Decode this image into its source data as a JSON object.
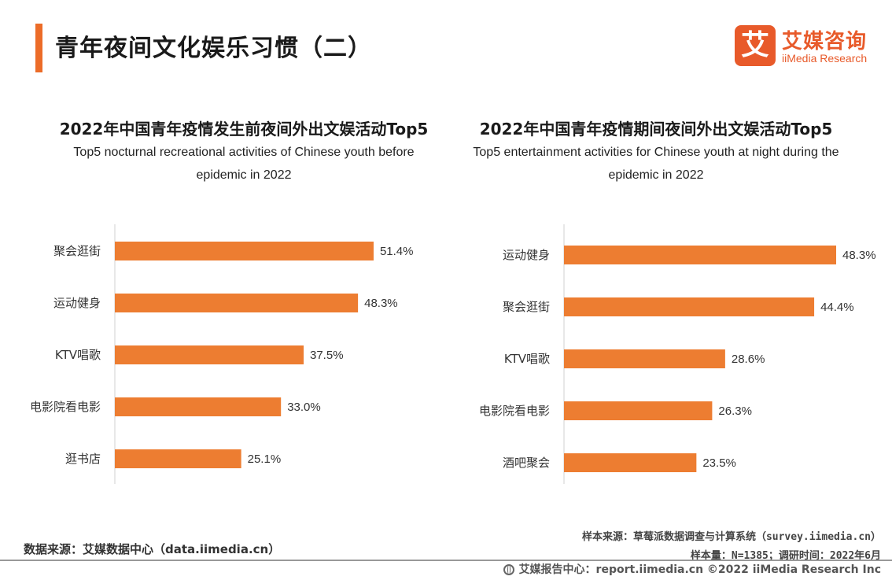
{
  "header": {
    "title": "青年夜间文化娱乐习惯（二）",
    "logo": {
      "mark": "艾",
      "cn": "艾媒咨询",
      "en": "iiMedia Research",
      "icon": "iimedia-logo-icon"
    }
  },
  "chart_data": [
    {
      "type": "bar",
      "orientation": "horizontal",
      "title": "2022年中国青年疫情发生前夜间外出文娱活动Top5",
      "subtitle_line1": "Top5 nocturnal recreational activities of Chinese youth before",
      "subtitle_line2": "epidemic in 2022",
      "categories": [
        "聚会逛街",
        "运动健身",
        "KTV唱歌",
        "电影院看电影",
        "逛书店"
      ],
      "values": [
        51.4,
        48.3,
        37.5,
        33.0,
        25.1
      ],
      "value_labels": [
        "51.4%",
        "48.3%",
        "37.5%",
        "33.0%",
        "25.1%"
      ],
      "unit": "%",
      "xlim": [
        0,
        60
      ],
      "grid": false,
      "bar_color": "#ed7d31"
    },
    {
      "type": "bar",
      "orientation": "horizontal",
      "title": "2022年中国青年疫情期间夜间外出文娱活动Top5",
      "subtitle_line1": "Top5 entertainment activities for Chinese youth at night during the",
      "subtitle_line2": "epidemic in 2022",
      "categories": [
        "运动健身",
        "聚会逛街",
        "KTV唱歌",
        "电影院看电影",
        "酒吧聚会"
      ],
      "values": [
        48.3,
        44.4,
        28.6,
        26.3,
        23.5
      ],
      "value_labels": [
        "48.3%",
        "44.4%",
        "28.6%",
        "26.3%",
        "23.5%"
      ],
      "unit": "%",
      "xlim": [
        0,
        55
      ],
      "grid": false,
      "bar_color": "#ed7d31"
    }
  ],
  "footer": {
    "source_left": "数据来源：艾媒数据中心（data.iimedia.cn）",
    "sample_source": "样本来源：草莓派数据调查与计算系统（survey.iimedia.cn）",
    "sample_size": "样本量：N=1385；调研时间：2022年6月",
    "copyright": "艾媒报告中心：report.iimedia.cn  ©2022  iiMedia Research  Inc"
  }
}
